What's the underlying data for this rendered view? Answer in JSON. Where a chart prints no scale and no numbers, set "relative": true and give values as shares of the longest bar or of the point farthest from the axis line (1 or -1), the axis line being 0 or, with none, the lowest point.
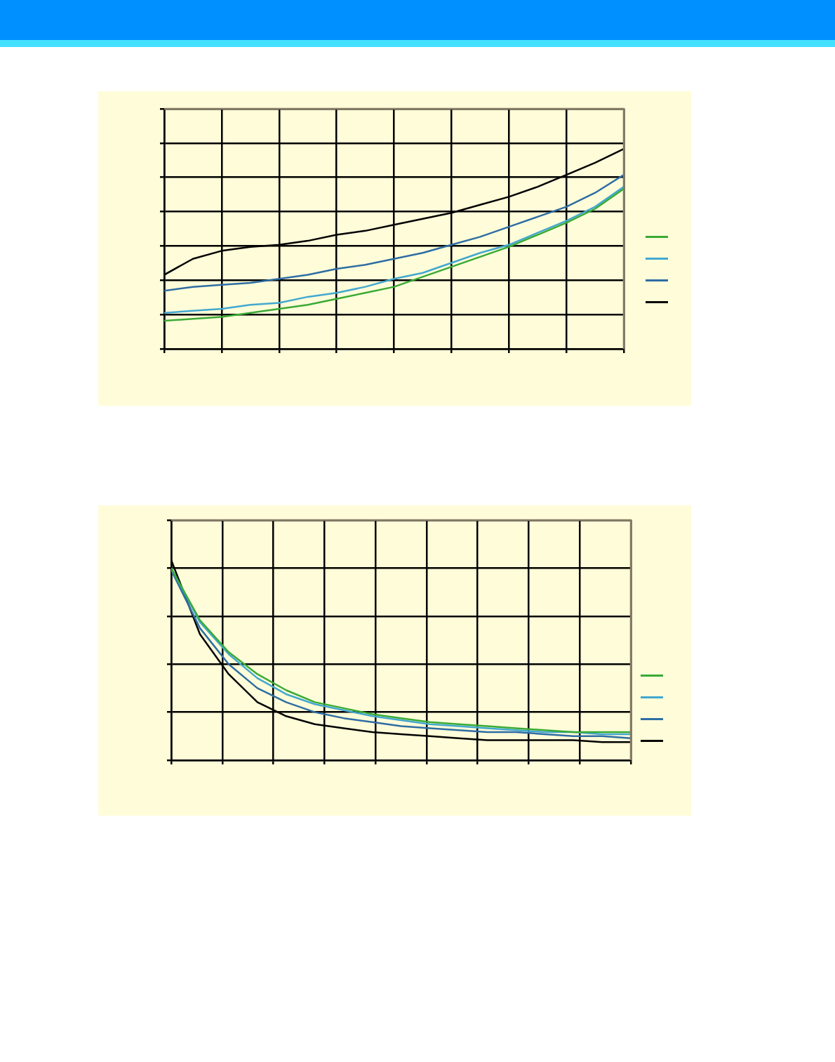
{
  "chart_data": [
    {
      "type": "line",
      "relative": true,
      "grid": true,
      "marker": "none",
      "line_style": "solid",
      "categories": [
        null,
        null,
        null,
        null,
        null,
        null,
        null,
        null,
        null,
        null,
        null,
        null,
        null,
        null,
        null,
        null,
        null
      ],
      "series": [
        {
          "color": "#3aaa35",
          "values": [
            0.14,
            0.15,
            0.16,
            0.18,
            0.2,
            0.22,
            0.25,
            0.28,
            0.31,
            0.36,
            0.41,
            0.46,
            0.51,
            0.57,
            0.63,
            0.7,
            0.8
          ]
        },
        {
          "color": "#42a8d0",
          "values": [
            0.18,
            0.19,
            0.2,
            0.22,
            0.23,
            0.26,
            0.28,
            0.31,
            0.35,
            0.38,
            0.43,
            0.48,
            0.52,
            0.58,
            0.64,
            0.71,
            0.81
          ]
        },
        {
          "color": "#2e6da4",
          "values": [
            0.29,
            0.31,
            0.32,
            0.33,
            0.35,
            0.37,
            0.4,
            0.42,
            0.45,
            0.48,
            0.52,
            0.56,
            0.61,
            0.66,
            0.71,
            0.78,
            0.87
          ]
        },
        {
          "color": "#000000",
          "values": [
            0.37,
            0.45,
            0.49,
            0.51,
            0.52,
            0.54,
            0.57,
            0.59,
            0.62,
            0.65,
            0.68,
            0.72,
            0.76,
            0.81,
            0.87,
            0.93,
            1
          ]
        }
      ]
    },
    {
      "type": "line",
      "relative": true,
      "grid": true,
      "marker": "none",
      "line_style": "solid",
      "categories": [
        null,
        null,
        null,
        null,
        null,
        null,
        null,
        null,
        null,
        null,
        null,
        null,
        null,
        null,
        null,
        null,
        null
      ],
      "series": [
        {
          "color": "#3aaa35",
          "values": [
            0.96,
            0.7,
            0.54,
            0.43,
            0.35,
            0.29,
            0.26,
            0.23,
            0.21,
            0.19,
            0.18,
            0.17,
            0.16,
            0.15,
            0.14,
            0.14,
            0.14
          ]
        },
        {
          "color": "#42a8d0",
          "values": [
            0.96,
            0.69,
            0.53,
            0.41,
            0.33,
            0.28,
            0.25,
            0.22,
            0.2,
            0.18,
            0.17,
            0.16,
            0.15,
            0.14,
            0.14,
            0.13,
            0.13
          ]
        },
        {
          "color": "#2e6da4",
          "values": [
            0.95,
            0.66,
            0.48,
            0.36,
            0.29,
            0.24,
            0.21,
            0.19,
            0.17,
            0.16,
            0.15,
            0.14,
            0.14,
            0.13,
            0.12,
            0.12,
            0.11
          ]
        },
        {
          "color": "#000000",
          "values": [
            1,
            0.63,
            0.43,
            0.29,
            0.22,
            0.18,
            0.16,
            0.14,
            0.13,
            0.12,
            0.11,
            0.1,
            0.1,
            0.1,
            0.1,
            0.09,
            0.09
          ]
        }
      ]
    }
  ]
}
